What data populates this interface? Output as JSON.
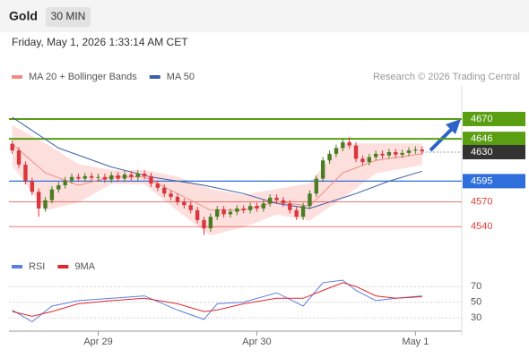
{
  "header": {
    "symbol": "Gold",
    "timeframe": "30 MIN",
    "datetime": "Friday, May 1, 2026 1:33:14 AM CET"
  },
  "chart_data": [
    {
      "type": "candlestick",
      "attribution": "Research © 2026 Trading Central",
      "up_color": "#4a7d23",
      "down_color": "#d9363e",
      "xlim": [
        -0.5,
        68
      ],
      "xticks": [
        {
          "value": 13,
          "label": "Apr 29"
        },
        {
          "value": 37,
          "label": "Apr 30"
        },
        {
          "value": 61,
          "label": "May 1"
        }
      ],
      "ylim": [
        4509,
        4711
      ],
      "open": [
        4640,
        4632,
        4615,
        4595,
        4582,
        4562,
        4572,
        4585,
        4590,
        4596,
        4600,
        4598,
        4601,
        4599,
        4600,
        4597,
        4602,
        4598,
        4603,
        4600,
        4604,
        4601,
        4592,
        4587,
        4580,
        4576,
        4570,
        4566,
        4560,
        4548,
        4538,
        4552,
        4561,
        4555,
        4558,
        4562,
        4560,
        4565,
        4562,
        4568,
        4575,
        4572,
        4568,
        4560,
        4552,
        4565,
        4580,
        4598,
        4620,
        4628,
        4635,
        4642,
        4638,
        4622,
        4618,
        4624,
        4628,
        4626,
        4630,
        4627,
        4629,
        4632,
        4633
      ],
      "high": [
        4644,
        4636,
        4619,
        4599,
        4586,
        4576,
        4589,
        4594,
        4600,
        4604,
        4604,
        4605,
        4605,
        4604,
        4604,
        4606,
        4606,
        4607,
        4607,
        4608,
        4608,
        4605,
        4596,
        4591,
        4584,
        4580,
        4574,
        4570,
        4564,
        4552,
        4556,
        4565,
        4565,
        4562,
        4566,
        4566,
        4569,
        4569,
        4572,
        4579,
        4579,
        4576,
        4572,
        4564,
        4569,
        4584,
        4602,
        4624,
        4632,
        4639,
        4646,
        4648,
        4642,
        4626,
        4628,
        4632,
        4632,
        4634,
        4634,
        4633,
        4636,
        4637,
        4637
      ],
      "low": [
        4628,
        4611,
        4591,
        4578,
        4552,
        4558,
        4568,
        4581,
        4586,
        4592,
        4594,
        4594,
        4595,
        4595,
        4593,
        4593,
        4594,
        4594,
        4596,
        4596,
        4597,
        4588,
        4583,
        4576,
        4572,
        4566,
        4562,
        4556,
        4544,
        4530,
        4534,
        4548,
        4551,
        4551,
        4554,
        4556,
        4556,
        4558,
        4558,
        4564,
        4568,
        4564,
        4556,
        4548,
        4548,
        4561,
        4576,
        4594,
        4616,
        4624,
        4631,
        4634,
        4618,
        4614,
        4614,
        4620,
        4622,
        4622,
        4623,
        4623,
        4625,
        4628,
        4627
      ],
      "close": [
        4632,
        4615,
        4595,
        4582,
        4562,
        4572,
        4585,
        4590,
        4596,
        4600,
        4598,
        4601,
        4599,
        4600,
        4597,
        4602,
        4598,
        4603,
        4600,
        4604,
        4601,
        4592,
        4587,
        4580,
        4576,
        4570,
        4566,
        4560,
        4548,
        4538,
        4552,
        4561,
        4555,
        4558,
        4562,
        4560,
        4565,
        4562,
        4568,
        4575,
        4572,
        4568,
        4560,
        4552,
        4565,
        4580,
        4598,
        4620,
        4628,
        4635,
        4642,
        4638,
        4622,
        4618,
        4624,
        4628,
        4626,
        4630,
        4627,
        4629,
        4632,
        4633,
        4631
      ],
      "series": [
        {
          "name": "MA 20 + Bollinger Bands",
          "color": "#f28b82",
          "band_color": "#fde0de",
          "x": [
            0,
            5,
            10,
            15,
            20,
            25,
            30,
            35,
            40,
            45,
            50,
            55,
            62
          ],
          "values": [
            4640,
            4605,
            4590,
            4600,
            4600,
            4580,
            4560,
            4560,
            4570,
            4565,
            4605,
            4620,
            4628
          ],
          "upper": [
            4662,
            4640,
            4615,
            4608,
            4608,
            4600,
            4585,
            4578,
            4585,
            4592,
            4640,
            4640,
            4640
          ],
          "lower": [
            4615,
            4560,
            4570,
            4592,
            4592,
            4560,
            4530,
            4540,
            4555,
            4548,
            4575,
            4605,
            4615
          ]
        },
        {
          "name": "MA 50",
          "color": "#3b5fa8",
          "x": [
            0,
            7,
            15,
            21,
            29,
            35,
            40,
            45,
            52,
            57,
            62
          ],
          "values": [
            4672,
            4635,
            4612,
            4600,
            4590,
            4580,
            4568,
            4562,
            4580,
            4595,
            4607
          ]
        }
      ],
      "levels": [
        {
          "value": 4670,
          "color": "#5a9e12",
          "style": "box"
        },
        {
          "value": 4646,
          "color": "#5a9e12",
          "style": "box"
        },
        {
          "value": 4630,
          "color": "#333333",
          "style": "current"
        },
        {
          "value": 4595,
          "color": "#2f6fdc",
          "style": "box"
        },
        {
          "value": 4570,
          "color": "#e0403a",
          "style": "text"
        },
        {
          "value": 4540,
          "color": "#e0403a",
          "style": "text"
        }
      ]
    },
    {
      "type": "line",
      "xlim": [
        -0.5,
        68
      ],
      "ylim": [
        13,
        93
      ],
      "yticks": [
        30,
        50,
        70
      ],
      "series": [
        {
          "name": "RSI",
          "color": "#5b7fde",
          "x": [
            0,
            3,
            6,
            10,
            15,
            20,
            25,
            29,
            31,
            35,
            40,
            44,
            47,
            50,
            52,
            55,
            58,
            62
          ],
          "values": [
            40,
            25,
            45,
            52,
            55,
            58,
            40,
            28,
            48,
            50,
            62,
            45,
            75,
            78,
            65,
            52,
            55,
            58
          ]
        },
        {
          "name": "9MA",
          "color": "#e0282e",
          "x": [
            0,
            3,
            6,
            10,
            15,
            20,
            25,
            29,
            31,
            35,
            40,
            44,
            47,
            50,
            52,
            55,
            58,
            62
          ],
          "values": [
            38,
            32,
            38,
            48,
            52,
            55,
            48,
            38,
            40,
            48,
            55,
            55,
            65,
            75,
            70,
            58,
            55,
            57
          ]
        }
      ]
    }
  ]
}
